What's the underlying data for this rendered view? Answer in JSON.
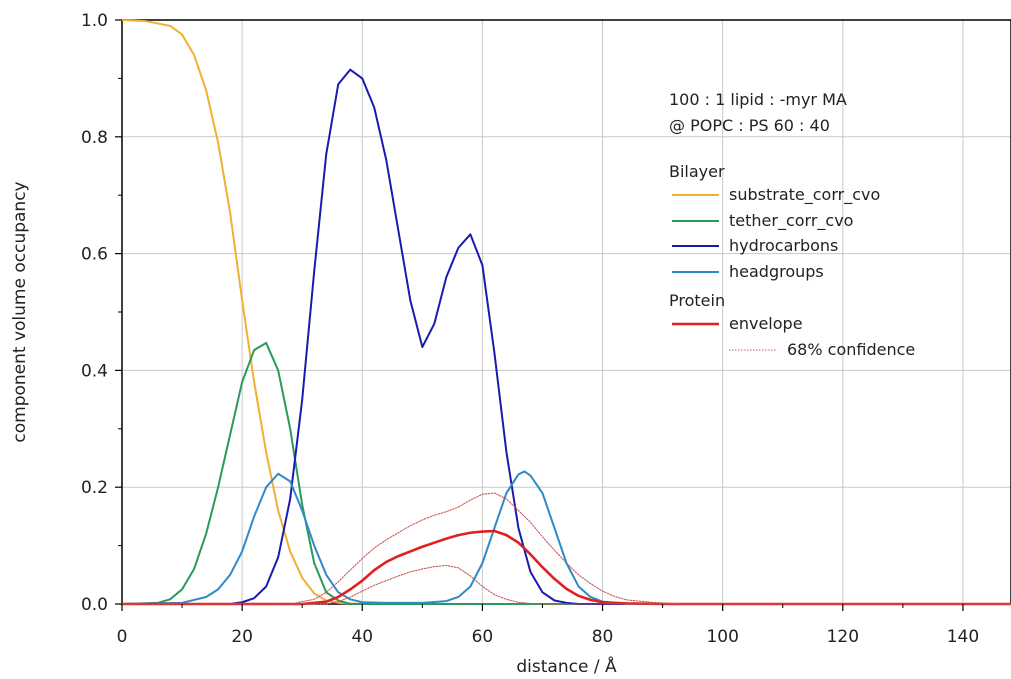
{
  "chart_data": {
    "type": "line",
    "title": "",
    "xlabel": "distance / Å",
    "ylabel": "component volume occupancy",
    "xlim": [
      0,
      148
    ],
    "ylim": [
      0,
      1.0
    ],
    "x_ticks": [
      0,
      20,
      40,
      60,
      80,
      100,
      120,
      140
    ],
    "y_ticks": [
      0.0,
      0.2,
      0.4,
      0.6,
      0.8,
      1.0
    ],
    "x_tick_labels": [
      "0",
      "20",
      "40",
      "60",
      "80",
      "100",
      "120",
      "140"
    ],
    "y_tick_labels": [
      "0.0",
      "0.2",
      "0.4",
      "0.6",
      "0.8",
      "1.0"
    ],
    "grid": true,
    "annotation": [
      "100 : 1 lipid : -myr MA",
      "@ POPC : PS 60 : 40"
    ],
    "legend_groups": [
      {
        "header": "Bilayer",
        "entries": [
          "substrate_corr_cvo",
          "tether_corr_cvo",
          "hydrocarbons",
          "headgroups"
        ]
      },
      {
        "header": "Protein",
        "entries": [
          "envelope",
          "68% confidence"
        ]
      }
    ],
    "legend_placement": "top-right",
    "series": [
      {
        "name": "substrate_corr_cvo",
        "color": "#f0b030",
        "x": [
          0,
          4,
          8,
          10,
          12,
          14,
          16,
          18,
          20,
          22,
          24,
          26,
          28,
          30,
          32,
          34,
          36,
          40,
          148
        ],
        "y": [
          1.0,
          0.998,
          0.99,
          0.975,
          0.94,
          0.88,
          0.79,
          0.67,
          0.52,
          0.38,
          0.26,
          0.16,
          0.09,
          0.045,
          0.018,
          0.006,
          0.002,
          0.0,
          0.0
        ]
      },
      {
        "name": "tether_corr_cvo",
        "color": "#2a9a5a",
        "x": [
          0,
          6,
          8,
          10,
          12,
          14,
          16,
          18,
          20,
          22,
          24,
          26,
          28,
          30,
          32,
          34,
          36,
          38,
          148
        ],
        "y": [
          0.0,
          0.002,
          0.008,
          0.025,
          0.06,
          0.12,
          0.2,
          0.29,
          0.38,
          0.435,
          0.447,
          0.4,
          0.3,
          0.17,
          0.07,
          0.02,
          0.006,
          0.0,
          0.0
        ]
      },
      {
        "name": "hydrocarbons",
        "color": "#1a1ab0",
        "x": [
          0,
          18,
          20,
          22,
          24,
          26,
          28,
          30,
          32,
          34,
          36,
          38,
          40,
          42,
          44,
          46,
          48,
          50,
          52,
          54,
          56,
          58,
          60,
          62,
          64,
          66,
          68,
          70,
          72,
          74,
          76,
          80,
          148
        ],
        "y": [
          0.0,
          0.0,
          0.003,
          0.01,
          0.03,
          0.08,
          0.18,
          0.35,
          0.57,
          0.77,
          0.89,
          0.915,
          0.9,
          0.85,
          0.76,
          0.64,
          0.52,
          0.44,
          0.48,
          0.56,
          0.61,
          0.633,
          0.58,
          0.43,
          0.26,
          0.13,
          0.055,
          0.02,
          0.006,
          0.002,
          0.0,
          0.0,
          0.0
        ]
      },
      {
        "name": "headgroups",
        "color": "#2e8ac8",
        "x": [
          0,
          10,
          14,
          16,
          18,
          20,
          22,
          24,
          26,
          28,
          30,
          32,
          34,
          36,
          38,
          40,
          44,
          50,
          54,
          56,
          58,
          60,
          62,
          64,
          66,
          67,
          68,
          70,
          72,
          74,
          76,
          78,
          80,
          84,
          148
        ],
        "y": [
          0.0,
          0.002,
          0.012,
          0.025,
          0.05,
          0.09,
          0.15,
          0.2,
          0.223,
          0.21,
          0.16,
          0.1,
          0.05,
          0.02,
          0.008,
          0.003,
          0.002,
          0.002,
          0.005,
          0.012,
          0.03,
          0.07,
          0.13,
          0.19,
          0.222,
          0.227,
          0.22,
          0.19,
          0.13,
          0.07,
          0.03,
          0.012,
          0.004,
          0.0,
          0.0
        ]
      },
      {
        "name": "envelope",
        "color": "#e02020",
        "x": [
          0,
          30,
          34,
          36,
          38,
          40,
          42,
          44,
          46,
          48,
          50,
          52,
          54,
          56,
          58,
          60,
          62,
          64,
          66,
          68,
          70,
          72,
          74,
          76,
          78,
          80,
          84,
          90,
          148
        ],
        "y": [
          0.0,
          0.0,
          0.004,
          0.012,
          0.025,
          0.04,
          0.058,
          0.072,
          0.082,
          0.09,
          0.098,
          0.105,
          0.112,
          0.118,
          0.122,
          0.124,
          0.125,
          0.118,
          0.105,
          0.085,
          0.063,
          0.043,
          0.026,
          0.014,
          0.007,
          0.003,
          0.001,
          0.0,
          0.0
        ]
      },
      {
        "name": "68% confidence (upper)",
        "color": "#cc5a5a",
        "x": [
          0,
          28,
          32,
          34,
          36,
          38,
          40,
          42,
          44,
          46,
          48,
          50,
          52,
          54,
          56,
          58,
          60,
          62,
          64,
          66,
          68,
          70,
          72,
          74,
          76,
          78,
          80,
          82,
          84,
          88,
          94,
          148
        ],
        "y": [
          0.0,
          0.0,
          0.008,
          0.02,
          0.038,
          0.058,
          0.078,
          0.096,
          0.11,
          0.122,
          0.134,
          0.144,
          0.152,
          0.158,
          0.166,
          0.178,
          0.188,
          0.19,
          0.18,
          0.16,
          0.14,
          0.115,
          0.092,
          0.07,
          0.05,
          0.035,
          0.022,
          0.013,
          0.007,
          0.003,
          0.0,
          0.0
        ]
      },
      {
        "name": "68% confidence (lower)",
        "color": "#cc5a5a",
        "x": [
          0,
          34,
          36,
          38,
          40,
          42,
          44,
          46,
          48,
          50,
          52,
          54,
          56,
          58,
          60,
          62,
          64,
          66,
          68,
          70,
          148
        ],
        "y": [
          0.0,
          0.0,
          0.004,
          0.012,
          0.022,
          0.032,
          0.04,
          0.048,
          0.055,
          0.06,
          0.064,
          0.066,
          0.062,
          0.048,
          0.03,
          0.016,
          0.008,
          0.003,
          0.001,
          0.0,
          0.0
        ]
      }
    ]
  }
}
